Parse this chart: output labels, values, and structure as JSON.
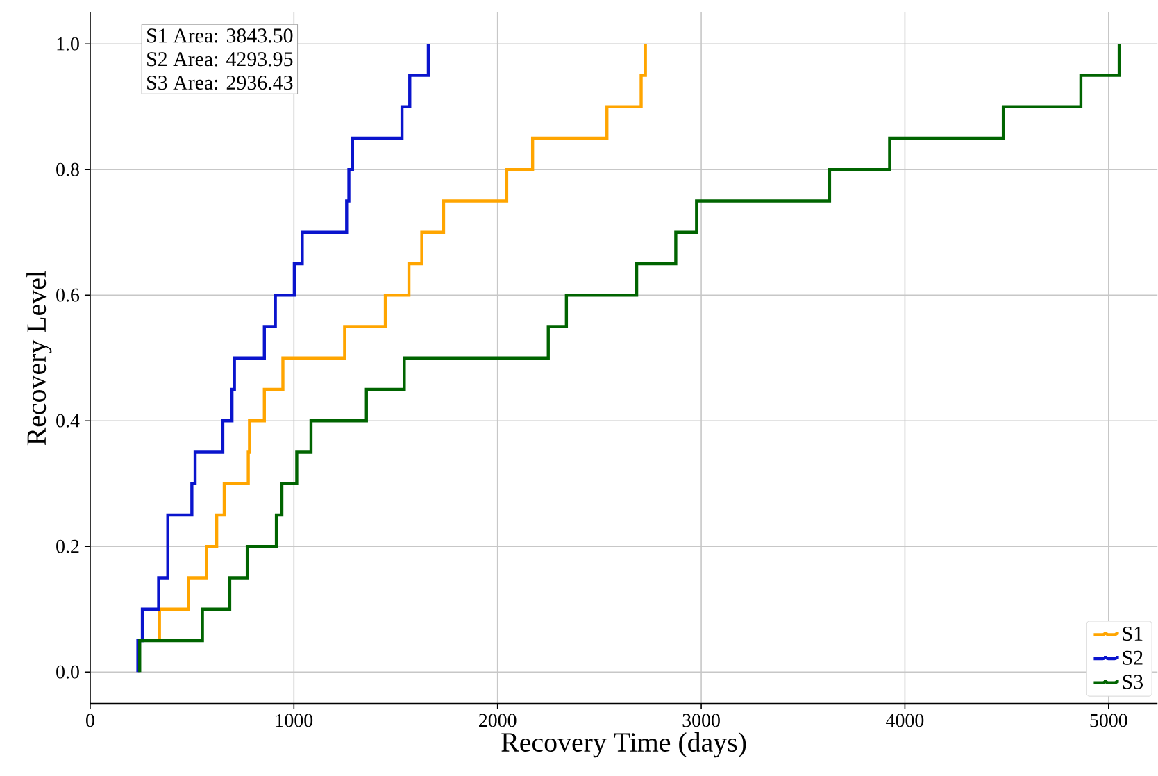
{
  "chart_data": {
    "type": "step",
    "xlabel": "Recovery Time (days)",
    "ylabel": "Recovery Level",
    "annotations": [
      "S1 Area: 3843.50",
      "S2 Area: 4293.95",
      "S3 Area: 2936.43"
    ],
    "series": [
      {
        "name": "S1",
        "color": "#ffa500",
        "x": [
          340,
          340,
          483,
          571,
          621,
          658,
          776,
          782,
          855,
          946,
          1249,
          1449,
          1565,
          1628,
          1735,
          2045,
          2172,
          2537,
          2705,
          2726
        ],
        "values": [
          0.05,
          0.1,
          0.15,
          0.2,
          0.25,
          0.3,
          0.35,
          0.4,
          0.45,
          0.5,
          0.55,
          0.6,
          0.65,
          0.7,
          0.75,
          0.8,
          0.85,
          0.9,
          0.95,
          1.0
        ]
      },
      {
        "name": "S2",
        "color": "#0a14cd",
        "x": [
          234,
          234,
          256,
          336,
          381,
          499,
          515,
          651,
          696,
          708,
          855,
          909,
          1002,
          1041,
          1259,
          1270,
          1288,
          1531,
          1569,
          1660
        ],
        "values": [
          0,
          0.05,
          0.1,
          0.15,
          0.25,
          0.3,
          0.35,
          0.4,
          0.45,
          0.5,
          0.55,
          0.6,
          0.65,
          0.7,
          0.75,
          0.8,
          0.85,
          0.9,
          0.95,
          1.0
        ]
      },
      {
        "name": "S3",
        "color": "#006400",
        "x": [
          243,
          243,
          551,
          685,
          771,
          914,
          941,
          1014,
          1084,
          1356,
          1542,
          2249,
          2338,
          2683,
          2875,
          2977,
          3630,
          3925,
          4483,
          4864,
          5052
        ],
        "values": [
          0,
          0.05,
          0.1,
          0.15,
          0.2,
          0.25,
          0.3,
          0.35,
          0.4,
          0.45,
          0.5,
          0.55,
          0.6,
          0.65,
          0.7,
          0.75,
          0.8,
          0.85,
          0.9,
          0.95,
          1.0
        ]
      }
    ],
    "xlim": [
      0,
      5240
    ],
    "ylim": [
      -0.05,
      1.05
    ],
    "xticks": [
      0,
      1000,
      2000,
      3000,
      4000,
      5000
    ],
    "yticks": [
      {
        "value": 0,
        "label": "0.0"
      },
      {
        "value": 0.2,
        "label": "0.2"
      },
      {
        "value": 0.4,
        "label": "0.4"
      },
      {
        "value": 0.6,
        "label": "0.6"
      },
      {
        "value": 0.8,
        "label": "0.8"
      },
      {
        "value": 1.0,
        "label": "1.0"
      }
    ],
    "grid": true,
    "legend": "bottom right"
  }
}
